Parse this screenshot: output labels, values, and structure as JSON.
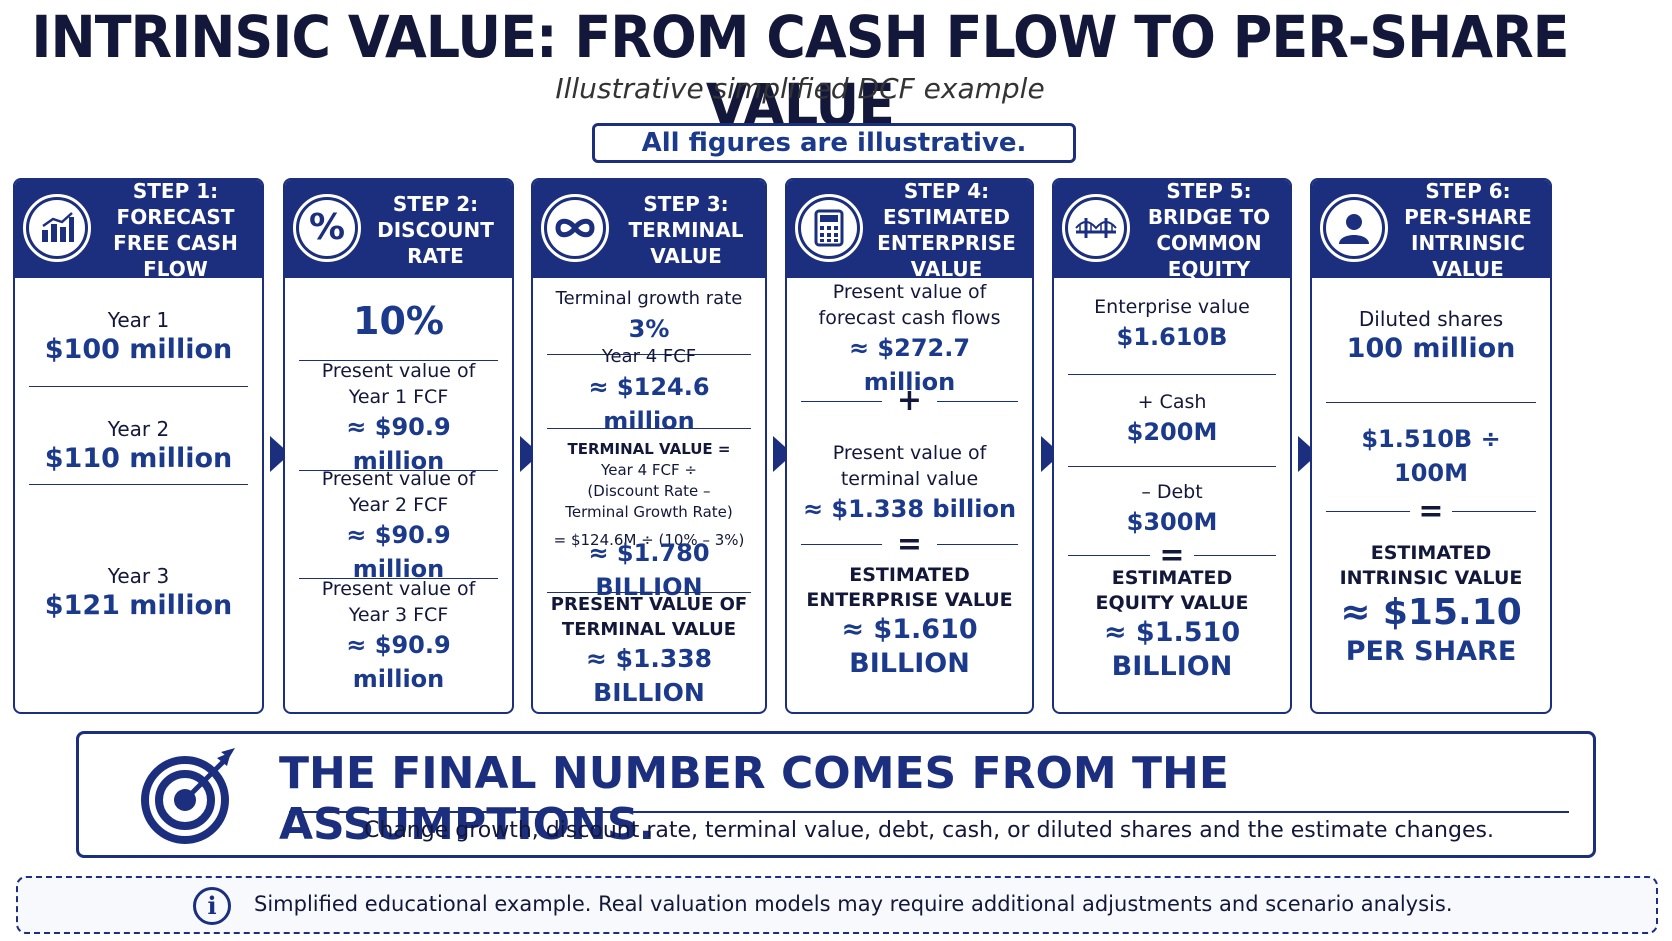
{
  "header": {
    "title": "INTRINSIC VALUE: FROM CASH FLOW TO PER-SHARE VALUE",
    "subtitle": "Illustrative simplified DCF example",
    "notice": "All figures are illustrative."
  },
  "steps": [
    {
      "icon": "bar-chart-icon",
      "heading": [
        "STEP 1:",
        "FORECAST",
        "FREE CASH FLOW"
      ],
      "items": [
        {
          "label": "Year 1",
          "value": "$100 million"
        },
        {
          "label": "Year 2",
          "value": "$110 million"
        },
        {
          "label": "Year 3",
          "value": "$121 million"
        }
      ]
    },
    {
      "icon": "percent-icon",
      "heading": [
        "STEP 2:",
        "DISCOUNT RATE"
      ],
      "rate": "10%",
      "items": [
        {
          "label": [
            "Present value of",
            "Year 1 FCF"
          ],
          "value": "≈ $90.9 million"
        },
        {
          "label": [
            "Present value of",
            "Year 2 FCF"
          ],
          "value": "≈ $90.9 million"
        },
        {
          "label": [
            "Present value of",
            "Year 3 FCF"
          ],
          "value": "≈ $90.9 million"
        }
      ]
    },
    {
      "icon": "infinity-icon",
      "heading": [
        "STEP 3:",
        "TERMINAL VALUE"
      ],
      "growth_label": "Terminal growth rate",
      "growth_value": "3%",
      "fcf_label": "Year 4 FCF",
      "fcf_value": "≈ $124.6 million",
      "formula": [
        "TERMINAL VALUE =",
        "Year 4 FCF ÷",
        "(Discount Rate –",
        "Terminal Growth Rate)"
      ],
      "calc": "= $124.6M ÷ (10% – 3%)",
      "tv_value": "≈ $1.780 BILLION",
      "pv_label": [
        "PRESENT VALUE OF",
        "TERMINAL VALUE"
      ],
      "pv_value": "≈ $1.338 BILLION"
    },
    {
      "icon": "calculator-icon",
      "heading": [
        "STEP 4:",
        "ESTIMATED",
        "ENTERPRISE VALUE"
      ],
      "pv_fcf_label": [
        "Present value of",
        "forecast cash flows"
      ],
      "pv_fcf_value": "≈ $272.7 million",
      "plus": "+",
      "pv_tv_label": [
        "Present value of",
        "terminal value"
      ],
      "pv_tv_value": "≈ $1.338 billion",
      "equals": "=",
      "result_label": [
        "ESTIMATED",
        "ENTERPRISE VALUE"
      ],
      "result_value": "≈ $1.610 BILLION"
    },
    {
      "icon": "bridge-icon",
      "heading": [
        "STEP 5:",
        "BRIDGE TO",
        "COMMON EQUITY"
      ],
      "ev_label": "Enterprise value",
      "ev_value": "$1.610B",
      "cash_label": "+ Cash",
      "cash_value": "$200M",
      "debt_label": "– Debt",
      "debt_value": "$300M",
      "equals": "=",
      "result_label": [
        "ESTIMATED",
        "EQUITY VALUE"
      ],
      "result_value": "≈ $1.510 BILLION"
    },
    {
      "icon": "person-icon",
      "heading": [
        "STEP 6:",
        "PER-SHARE",
        "INTRINSIC VALUE"
      ],
      "shares_label": "Diluted shares",
      "shares_value": "100 million",
      "division": "$1.510B ÷ 100M",
      "equals": "=",
      "result_label": [
        "ESTIMATED",
        "INTRINSIC VALUE"
      ],
      "result_value": "≈ $15.10",
      "result_unit": "PER SHARE"
    }
  ],
  "banner": {
    "icon": "target-icon",
    "title": "THE FINAL NUMBER COMES FROM THE ASSUMPTIONS.",
    "text": "Change growth, discount rate, terminal value, debt, cash, or diluted shares and the estimate changes."
  },
  "footer": {
    "icon": "info-icon",
    "icon_glyph": "i",
    "text": "Simplified educational example. Real valuation models may require additional adjustments and scenario analysis."
  },
  "colors": {
    "navy": "#1c2f7e",
    "accent": "#1b3a8c",
    "text": "#13183a"
  }
}
